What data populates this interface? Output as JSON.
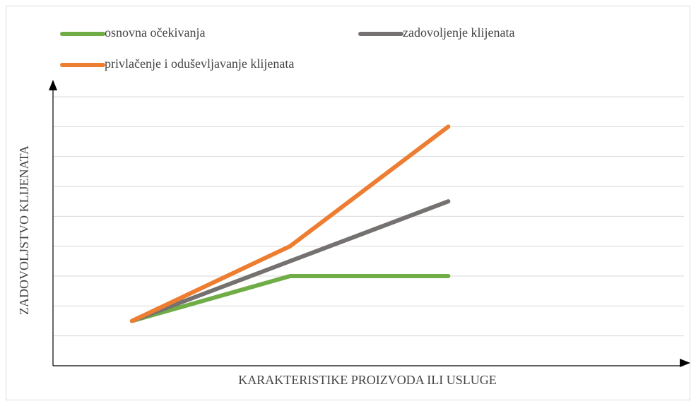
{
  "chart_data": {
    "type": "line",
    "xlabel": "KARAKTERISTIKE PROIZVODA ILI USLUGE",
    "ylabel": "ZADOVOLJSTVO KLIJENATA",
    "categories": [
      null,
      null,
      null,
      null
    ],
    "series": [
      {
        "name": "osnovna očekivanja",
        "color": "#70ad47",
        "values": [
          1.5,
          3,
          3,
          null
        ]
      },
      {
        "name": "zadovoljenje klijenata",
        "color": "#767171",
        "values": [
          1.5,
          3.5,
          5.5,
          null
        ]
      },
      {
        "name": "privlačenje i oduševljavanje klijenata",
        "color": "#ed7d31",
        "values": [
          1.5,
          4,
          8,
          null
        ]
      }
    ],
    "ylim": [
      0,
      9
    ],
    "yticks": [
      0,
      1,
      2,
      3,
      4,
      5,
      6,
      7,
      8,
      9
    ],
    "grid": true
  }
}
